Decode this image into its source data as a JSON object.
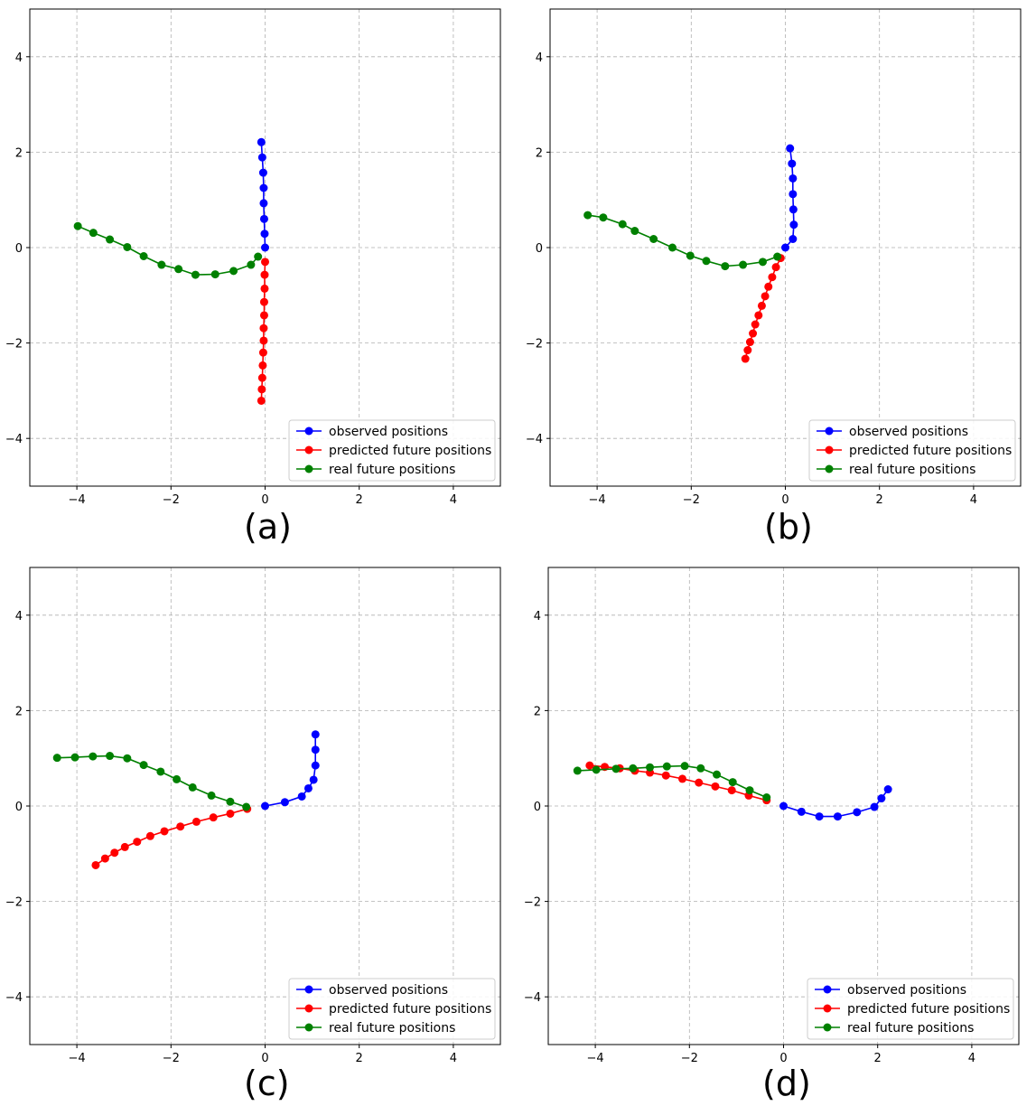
{
  "chart_data": [
    {
      "type": "line",
      "caption": "(a)",
      "xlim": [
        -5,
        5
      ],
      "ylim": [
        -5,
        5
      ],
      "xticks": [
        -4,
        -2,
        0,
        2,
        4
      ],
      "yticks": [
        -4,
        -2,
        0,
        2,
        4
      ],
      "grid": true,
      "legend_position": "lower-right",
      "series": [
        {
          "name": "observed positions",
          "color": "#0000ff",
          "points": [
            [
              0,
              0
            ],
            [
              -0.01,
              0.29
            ],
            [
              -0.02,
              0.6
            ],
            [
              -0.03,
              0.93
            ],
            [
              -0.03,
              1.25
            ],
            [
              -0.04,
              1.57
            ],
            [
              -0.06,
              1.89
            ],
            [
              -0.08,
              2.21
            ]
          ]
        },
        {
          "name": "predicted future positions",
          "color": "#ff0000",
          "points": [
            [
              0,
              -0.3
            ],
            [
              -0.01,
              -0.57
            ],
            [
              -0.01,
              -0.86
            ],
            [
              -0.02,
              -1.14
            ],
            [
              -0.02,
              -1.42
            ],
            [
              -0.03,
              -1.69
            ],
            [
              -0.03,
              -1.95
            ],
            [
              -0.04,
              -2.2
            ],
            [
              -0.05,
              -2.47
            ],
            [
              -0.06,
              -2.73
            ],
            [
              -0.07,
              -2.97
            ],
            [
              -0.08,
              -3.21
            ]
          ]
        },
        {
          "name": "real future positions",
          "color": "#008000",
          "points": [
            [
              -0.15,
              -0.19
            ],
            [
              -0.3,
              -0.36
            ],
            [
              -0.67,
              -0.49
            ],
            [
              -1.06,
              -0.56
            ],
            [
              -1.48,
              -0.57
            ],
            [
              -1.84,
              -0.45
            ],
            [
              -2.2,
              -0.36
            ],
            [
              -2.58,
              -0.18
            ],
            [
              -2.93,
              0.01
            ],
            [
              -3.3,
              0.17
            ],
            [
              -3.65,
              0.31
            ],
            [
              -3.98,
              0.45
            ]
          ]
        }
      ]
    },
    {
      "type": "line",
      "caption": "(b)",
      "xlim": [
        -5,
        5
      ],
      "ylim": [
        -5,
        5
      ],
      "xticks": [
        -4,
        -2,
        0,
        2,
        4
      ],
      "yticks": [
        -4,
        -2,
        0,
        2,
        4
      ],
      "grid": true,
      "legend_position": "lower-right",
      "series": [
        {
          "name": "observed positions",
          "color": "#0000ff",
          "points": [
            [
              0,
              0
            ],
            [
              0.16,
              0.18
            ],
            [
              0.18,
              0.48
            ],
            [
              0.17,
              0.8
            ],
            [
              0.16,
              1.12
            ],
            [
              0.16,
              1.45
            ],
            [
              0.14,
              1.76
            ],
            [
              0.1,
              2.08
            ]
          ]
        },
        {
          "name": "predicted future positions",
          "color": "#ff0000",
          "points": [
            [
              -0.1,
              -0.22
            ],
            [
              -0.2,
              -0.41
            ],
            [
              -0.28,
              -0.62
            ],
            [
              -0.36,
              -0.82
            ],
            [
              -0.43,
              -1.02
            ],
            [
              -0.5,
              -1.22
            ],
            [
              -0.57,
              -1.42
            ],
            [
              -0.64,
              -1.61
            ],
            [
              -0.69,
              -1.8
            ],
            [
              -0.75,
              -1.98
            ],
            [
              -0.8,
              -2.15
            ],
            [
              -0.85,
              -2.33
            ]
          ]
        },
        {
          "name": "real future positions",
          "color": "#008000",
          "points": [
            [
              -0.17,
              -0.19
            ],
            [
              -0.48,
              -0.3
            ],
            [
              -0.9,
              -0.36
            ],
            [
              -1.28,
              -0.39
            ],
            [
              -1.68,
              -0.28
            ],
            [
              -2.02,
              -0.17
            ],
            [
              -2.4,
              0
            ],
            [
              -2.8,
              0.18
            ],
            [
              -3.2,
              0.35
            ],
            [
              -3.46,
              0.49
            ],
            [
              -3.87,
              0.63
            ],
            [
              -4.2,
              0.68
            ]
          ]
        }
      ]
    },
    {
      "type": "line",
      "caption": "(c)",
      "xlim": [
        -5,
        5
      ],
      "ylim": [
        -5,
        5
      ],
      "xticks": [
        -4,
        -2,
        0,
        2,
        4
      ],
      "yticks": [
        -4,
        -2,
        0,
        2,
        4
      ],
      "grid": true,
      "legend_position": "lower-right",
      "series": [
        {
          "name": "observed positions",
          "color": "#0000ff",
          "points": [
            [
              0,
              0
            ],
            [
              0.42,
              0.08
            ],
            [
              0.78,
              0.2
            ],
            [
              0.92,
              0.37
            ],
            [
              1.03,
              0.55
            ],
            [
              1.07,
              0.85
            ],
            [
              1.07,
              1.18
            ],
            [
              1.07,
              1.5
            ]
          ]
        },
        {
          "name": "predicted future positions",
          "color": "#ff0000",
          "points": [
            [
              -0.38,
              -0.06
            ],
            [
              -0.74,
              -0.16
            ],
            [
              -1.1,
              -0.24
            ],
            [
              -1.46,
              -0.33
            ],
            [
              -1.8,
              -0.43
            ],
            [
              -2.14,
              -0.53
            ],
            [
              -2.44,
              -0.63
            ],
            [
              -2.72,
              -0.75
            ],
            [
              -2.98,
              -0.86
            ],
            [
              -3.2,
              -0.98
            ],
            [
              -3.4,
              -1.1
            ],
            [
              -3.6,
              -1.24
            ]
          ]
        },
        {
          "name": "real future positions",
          "color": "#008000",
          "points": [
            [
              -0.4,
              -0.02
            ],
            [
              -0.74,
              0.09
            ],
            [
              -1.14,
              0.22
            ],
            [
              -1.54,
              0.39
            ],
            [
              -1.88,
              0.56
            ],
            [
              -2.22,
              0.72
            ],
            [
              -2.58,
              0.86
            ],
            [
              -2.93,
              1.0
            ],
            [
              -3.3,
              1.05
            ],
            [
              -3.66,
              1.04
            ],
            [
              -4.04,
              1.02
            ],
            [
              -4.42,
              1.01
            ]
          ]
        }
      ]
    },
    {
      "type": "line",
      "caption": "(d)",
      "xlim": [
        -5,
        5
      ],
      "ylim": [
        -5,
        5
      ],
      "xticks": [
        -4,
        -2,
        0,
        2,
        4
      ],
      "yticks": [
        -4,
        -2,
        0,
        2,
        4
      ],
      "grid": true,
      "legend_position": "lower-right",
      "series": [
        {
          "name": "observed positions",
          "color": "#0000ff",
          "points": [
            [
              0,
              0
            ],
            [
              0.38,
              -0.12
            ],
            [
              0.76,
              -0.22
            ],
            [
              1.15,
              -0.22
            ],
            [
              1.56,
              -0.13
            ],
            [
              1.93,
              -0.02
            ],
            [
              2.08,
              0.16
            ],
            [
              2.22,
              0.35
            ]
          ]
        },
        {
          "name": "predicted future positions",
          "color": "#ff0000",
          "points": [
            [
              -0.36,
              0.12
            ],
            [
              -0.74,
              0.22
            ],
            [
              -1.1,
              0.33
            ],
            [
              -1.45,
              0.41
            ],
            [
              -1.8,
              0.49
            ],
            [
              -2.15,
              0.57
            ],
            [
              -2.5,
              0.64
            ],
            [
              -2.84,
              0.7
            ],
            [
              -3.16,
              0.74
            ],
            [
              -3.48,
              0.79
            ],
            [
              -3.8,
              0.82
            ],
            [
              -4.12,
              0.85
            ]
          ]
        },
        {
          "name": "real future positions",
          "color": "#008000",
          "points": [
            [
              -0.36,
              0.18
            ],
            [
              -0.72,
              0.33
            ],
            [
              -1.08,
              0.5
            ],
            [
              -1.42,
              0.66
            ],
            [
              -1.76,
              0.79
            ],
            [
              -2.1,
              0.84
            ],
            [
              -2.48,
              0.83
            ],
            [
              -2.84,
              0.81
            ],
            [
              -3.2,
              0.79
            ],
            [
              -3.56,
              0.78
            ],
            [
              -3.98,
              0.76
            ],
            [
              -4.38,
              0.74
            ]
          ]
        }
      ]
    }
  ]
}
